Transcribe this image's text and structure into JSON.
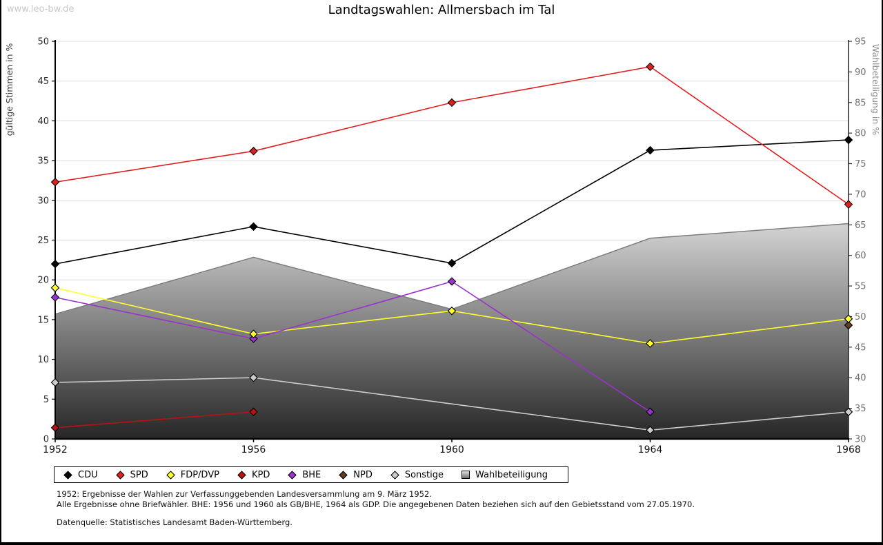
{
  "page": {
    "watermark": "www.leo-bw.de",
    "title": "Landtagswahlen: Allmersbach im Tal",
    "footnotes": [
      "1952: Ergebnisse der Wahlen zur Verfassunggebenden Landesversammlung am 9. März 1952.",
      "Alle Ergebnisse ohne Briefwähler. BHE: 1956 und 1960 als GB/BHE, 1964 als GDP. Die angegebenen Daten beziehen sich auf den Gebietsstand vom 27.05.1970."
    ],
    "source": "Datenquelle: Statistisches Landesamt Baden-Württemberg."
  },
  "chart_data": {
    "type": "line",
    "title": "Landtagswahlen: Allmersbach im Tal",
    "categories": [
      "1952",
      "1956",
      "1960",
      "1964",
      "1968"
    ],
    "left_axis": {
      "label": "gültige Stimmen in %",
      "min": 0,
      "max": 50,
      "step": 5
    },
    "right_axis": {
      "label": "Wahlbeteiligung in %",
      "min": 30,
      "max": 95,
      "step": 5
    },
    "grid": true,
    "legend_position": "bottom",
    "series": [
      {
        "name": "CDU",
        "color": "#000000",
        "marker": "diamond",
        "values": [
          22.0,
          26.7,
          22.1,
          36.3,
          37.6
        ]
      },
      {
        "name": "SPD",
        "color": "#e01f1f",
        "marker": "diamond",
        "values": [
          32.3,
          36.2,
          42.3,
          46.8,
          29.5
        ]
      },
      {
        "name": "FDP/DVP",
        "color": "#ffff2e",
        "marker": "diamond",
        "values": [
          19.0,
          13.2,
          16.1,
          12.0,
          15.1
        ]
      },
      {
        "name": "KPD",
        "color": "#bb1111",
        "marker": "diamond",
        "values": [
          1.4,
          3.4,
          null,
          null,
          null
        ]
      },
      {
        "name": "BHE",
        "color": "#9933cc",
        "marker": "diamond",
        "values": [
          17.8,
          12.6,
          19.8,
          3.4,
          null
        ]
      },
      {
        "name": "NPD",
        "color": "#5f3d26",
        "marker": "diamond",
        "values": [
          null,
          null,
          null,
          null,
          14.3
        ]
      },
      {
        "name": "Sonstige",
        "color": "#cccccc",
        "marker": "diamond",
        "values": [
          7.1,
          7.7,
          null,
          1.1,
          3.4
        ]
      }
    ],
    "turnout_area": {
      "name": "Wahlbeteiligung",
      "axis": "right",
      "values": [
        50.4,
        59.7,
        51.2,
        62.8,
        65.2
      ],
      "fill_top": "#d4d4d4",
      "fill_bottom": "#262626",
      "outline": "#7d7d7d"
    }
  }
}
